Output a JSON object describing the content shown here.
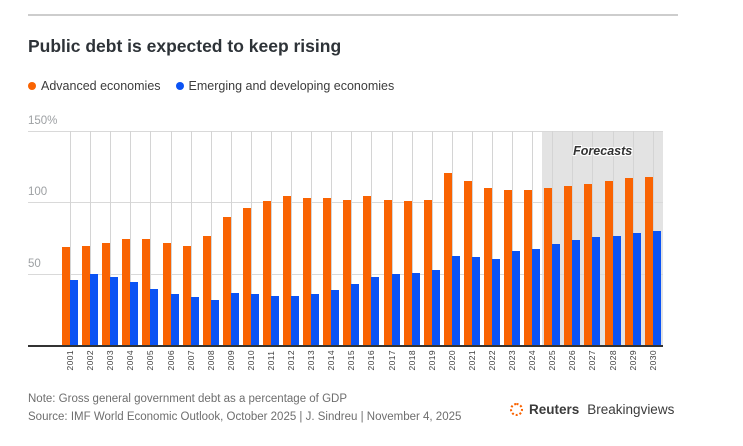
{
  "header": {
    "title": "Public debt is expected to keep rising"
  },
  "legend": {
    "items": [
      {
        "label": "Advanced economies",
        "color": "#f96302"
      },
      {
        "label": "Emerging and developing economies",
        "color": "#0b53f4"
      }
    ]
  },
  "chart_data": {
    "type": "bar",
    "title": "Public debt is expected to keep rising",
    "ylabel": "",
    "xlabel": "",
    "ylim": [
      0,
      150
    ],
    "y_ticks": [
      "150%",
      "100",
      "50"
    ],
    "grid": true,
    "categories": [
      "2001",
      "2002",
      "2003",
      "2004",
      "2005",
      "2006",
      "2007",
      "2008",
      "2009",
      "2010",
      "2011",
      "2012",
      "2013",
      "2014",
      "2015",
      "2016",
      "2017",
      "2018",
      "2019",
      "2020",
      "2021",
      "2022",
      "2023",
      "2024",
      "2025",
      "2026",
      "2027",
      "2028",
      "2029",
      "2030"
    ],
    "series": [
      {
        "name": "Advanced economies",
        "color": "#f96302",
        "values": [
          69,
          70,
          72,
          75,
          75,
          72,
          70,
          77,
          90,
          96,
          101,
          105,
          103,
          103,
          102,
          105,
          102,
          101,
          102,
          121,
          115,
          110,
          109,
          109,
          110,
          112,
          113,
          115,
          117,
          118
        ]
      },
      {
        "name": "Emerging and developing economies",
        "color": "#0b53f4",
        "values": [
          46,
          50,
          48,
          45,
          40,
          36,
          34,
          32,
          37,
          36,
          35,
          35,
          36,
          39,
          43,
          48,
          50,
          51,
          53,
          63,
          62,
          61,
          66,
          68,
          71,
          74,
          76,
          77,
          79,
          80
        ]
      }
    ],
    "forecast": {
      "label": "Forecasts",
      "start_category": "2025",
      "end_category": "2030"
    }
  },
  "footer": {
    "note": "Note: Gross general government debt as a percentage of GDP",
    "source": "Source: IMF World Economic Outlook, October 2025 | J. Sindreu | November 4, 2025",
    "brand": {
      "name": "Reuters",
      "suffix": "Breakingviews"
    }
  }
}
